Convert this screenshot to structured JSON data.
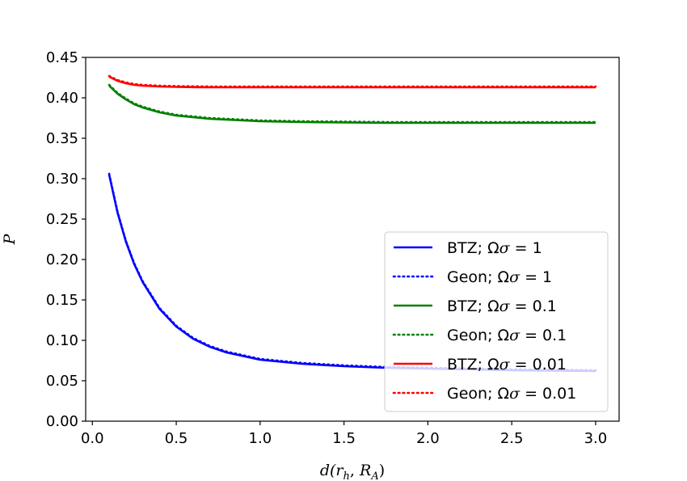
{
  "chart_data": {
    "type": "line",
    "title": "",
    "xlabel": "d(r_h, R_A)",
    "ylabel": "P",
    "xlim": [
      -0.04,
      3.14
    ],
    "ylim": [
      0.0,
      0.45
    ],
    "xticks": [
      "0.0",
      "0.5",
      "1.0",
      "1.5",
      "2.0",
      "2.5",
      "3.0"
    ],
    "yticks": [
      "0.00",
      "0.05",
      "0.10",
      "0.15",
      "0.20",
      "0.25",
      "0.30",
      "0.35",
      "0.40",
      "0.45"
    ],
    "grid": false,
    "legend_position": "lower-right",
    "x": [
      0.1,
      0.15,
      0.2,
      0.25,
      0.3,
      0.4,
      0.5,
      0.6,
      0.7,
      0.8,
      1.0,
      1.25,
      1.5,
      1.75,
      2.0,
      2.5,
      3.0
    ],
    "series": [
      {
        "name": "BTZ; Ωσ = 1",
        "color": "#0000ff",
        "style": "solid",
        "values": [
          0.305,
          0.258,
          0.222,
          0.194,
          0.172,
          0.139,
          0.117,
          0.102,
          0.092,
          0.085,
          0.076,
          0.071,
          0.068,
          0.066,
          0.065,
          0.063,
          0.062
        ]
      },
      {
        "name": "Geon; Ωσ = 1",
        "color": "#0000ff",
        "style": "dotted",
        "values": [
          0.306,
          0.259,
          0.223,
          0.195,
          0.173,
          0.14,
          0.118,
          0.103,
          0.093,
          0.086,
          0.077,
          0.072,
          0.069,
          0.067,
          0.066,
          0.064,
          0.063
        ]
      },
      {
        "name": "BTZ; Ωσ = 0.1",
        "color": "#008000",
        "style": "solid",
        "values": [
          0.415,
          0.405,
          0.398,
          0.392,
          0.388,
          0.382,
          0.378,
          0.376,
          0.374,
          0.373,
          0.371,
          0.37,
          0.3695,
          0.369,
          0.369,
          0.369,
          0.369
        ]
      },
      {
        "name": "Geon; Ωσ = 0.1",
        "color": "#008000",
        "style": "dotted",
        "values": [
          0.416,
          0.406,
          0.399,
          0.393,
          0.389,
          0.383,
          0.379,
          0.377,
          0.375,
          0.374,
          0.372,
          0.371,
          0.3705,
          0.37,
          0.37,
          0.37,
          0.37
        ]
      },
      {
        "name": "BTZ; Ωσ = 0.01",
        "color": "#ff0000",
        "style": "solid",
        "values": [
          0.426,
          0.421,
          0.418,
          0.416,
          0.415,
          0.414,
          0.4135,
          0.4132,
          0.413,
          0.413,
          0.413,
          0.413,
          0.413,
          0.413,
          0.413,
          0.413,
          0.413
        ]
      },
      {
        "name": "Geon; Ωσ = 0.01",
        "color": "#ff0000",
        "style": "dotted",
        "values": [
          0.427,
          0.422,
          0.419,
          0.417,
          0.416,
          0.415,
          0.4145,
          0.4142,
          0.414,
          0.414,
          0.414,
          0.414,
          0.414,
          0.414,
          0.414,
          0.414,
          0.414
        ]
      }
    ],
    "legend": {
      "entries": [
        {
          "prefix": "BTZ; ",
          "value": "1"
        },
        {
          "prefix": "Geon; ",
          "value": "1"
        },
        {
          "prefix": "BTZ; ",
          "value": "0.1"
        },
        {
          "prefix": "Geon; ",
          "value": "0.1"
        },
        {
          "prefix": "BTZ; ",
          "value": "0.01"
        },
        {
          "prefix": "Geon; ",
          "value": "0.01"
        }
      ]
    }
  }
}
